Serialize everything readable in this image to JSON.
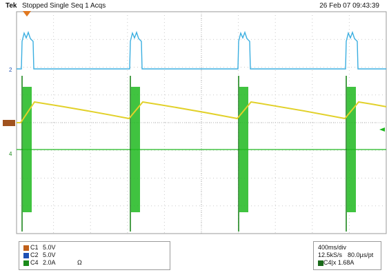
{
  "header": {
    "brand": "Tek",
    "status": "Stopped Single Seq 1 Acqs",
    "datetime": "26 Feb 07 09:43:39"
  },
  "channel_markers": {
    "c2": "2",
    "c4": "4"
  },
  "channels": [
    {
      "name": "C1",
      "scale": "5.0V",
      "extra": "",
      "color": "#c0601a"
    },
    {
      "name": "C2",
      "scale": "5.0V",
      "extra": "",
      "color": "#1e50b4"
    },
    {
      "name": "C4",
      "scale": "2.0A",
      "extra": "Ω",
      "color": "#1a8a1a"
    }
  ],
  "timebase": {
    "time_per_div": "400ms/div",
    "sample_rate": "12.5kS/s",
    "resolution": "80.0µs/pt",
    "math_channel": "C4",
    "math_expr": "x 1.68A"
  },
  "colors": {
    "ch1_yellow": "#e2d12a",
    "ch2_cyan": "#3aaee0",
    "ch4_green": "#1fb81f",
    "ground_marker": "#a0521e",
    "trigger_marker": "#e07820",
    "grid": "#c8c8c8"
  }
}
